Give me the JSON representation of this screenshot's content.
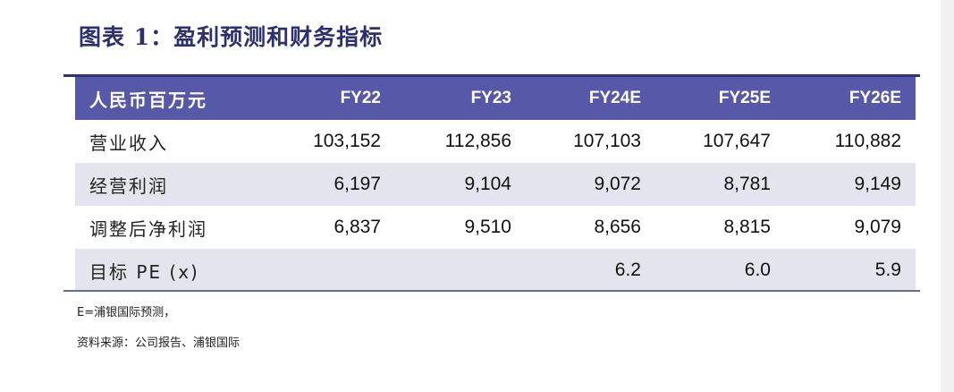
{
  "title": "图表 1：盈利预测和财务指标",
  "table": {
    "headers": [
      "人民币百万元",
      "FY22",
      "FY23",
      "FY24E",
      "FY25E",
      "FY26E"
    ],
    "rows": [
      {
        "label": "营业收入",
        "values": [
          "103,152",
          "112,856",
          "107,103",
          "107,647",
          "110,882"
        ]
      },
      {
        "label": "经营利润",
        "values": [
          "6,197",
          "9,104",
          "9,072",
          "8,781",
          "9,149"
        ]
      },
      {
        "label": "调整后净利润",
        "values": [
          "6,837",
          "9,510",
          "8,656",
          "8,815",
          "9,079"
        ]
      },
      {
        "label": "目标 PE (x)",
        "values": [
          "",
          "",
          "6.2",
          "6.0",
          "5.9"
        ]
      }
    ]
  },
  "notes": {
    "estimate": "E=浦银国际预测，",
    "source": "资料来源：公司报告、浦银国际"
  },
  "colors": {
    "header_bg": "#5758a8",
    "title": "#2d2f6f",
    "shaded_row": "#e4e4ee"
  }
}
